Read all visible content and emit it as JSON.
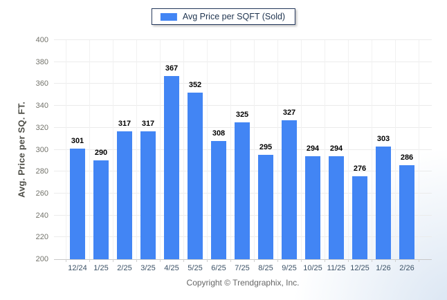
{
  "chart_data": {
    "type": "bar",
    "legend": "Avg Price per SQFT (Sold)",
    "legend_position": "top-center",
    "categories": [
      "12/24",
      "1/25",
      "2/25",
      "3/25",
      "4/25",
      "5/25",
      "6/25",
      "7/25",
      "8/25",
      "9/25",
      "10/25",
      "11/25",
      "12/25",
      "1/26",
      "2/26"
    ],
    "values": [
      301,
      290,
      317,
      317,
      367,
      352,
      308,
      325,
      295,
      327,
      294,
      294,
      276,
      303,
      286
    ],
    "xlabel": "",
    "ylabel": "Avg. Price per SQ. FT.",
    "ylim": [
      200,
      400
    ],
    "ytick_step": 20,
    "grid": true,
    "bar_color": "#4285f4"
  },
  "footer": {
    "copyright": "Copyright © Trendgraphix, Inc."
  }
}
